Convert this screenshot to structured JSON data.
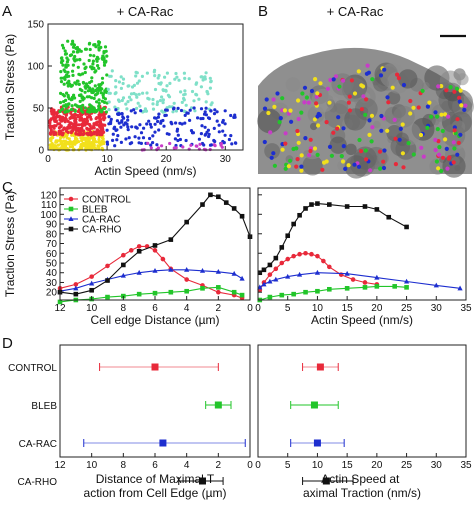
{
  "panels": {
    "A": {
      "letter": "A",
      "title": "+ CA-Rac"
    },
    "B": {
      "letter": "B",
      "title": "+ CA-Rac"
    },
    "C": {
      "letter": "C"
    },
    "D": {
      "letter": "D"
    }
  },
  "series_colors": {
    "CONTROL": "#e8293a",
    "BLEB": "#22c52a",
    "CA-RAC": "#1d2ecf",
    "CA-RHO": "#111111"
  },
  "chart_data": [
    {
      "id": "A",
      "type": "scatter",
      "title": "+ CA-Rac",
      "xlabel": "Actin Speed (nm/s)",
      "ylabel": "Traction Stress (Pa)",
      "xlim": [
        0,
        33
      ],
      "ylim": [
        0,
        150
      ],
      "xticks": [
        0,
        10,
        20,
        30
      ],
      "yticks": [
        0,
        50,
        100,
        150
      ],
      "clusters": [
        {
          "color": "#f2e01c",
          "x": [
            0.3,
            9.5
          ],
          "y": [
            0,
            22
          ],
          "n": 240
        },
        {
          "color": "#e8293a",
          "x": [
            0.3,
            9.8
          ],
          "y": [
            18,
            52
          ],
          "n": 320
        },
        {
          "color": "#22c52a",
          "x": [
            2,
            10
          ],
          "y": [
            45,
            130
          ],
          "n": 260
        },
        {
          "color": "#7fe0c8",
          "x": [
            10,
            28
          ],
          "y": [
            45,
            95
          ],
          "n": 140
        },
        {
          "color": "#1d2ecf",
          "x": [
            10,
            32
          ],
          "y": [
            5,
            50
          ],
          "n": 170
        },
        {
          "color": "#c83cc8",
          "x": [
            15,
            30
          ],
          "y": [
            0,
            8
          ],
          "n": 25
        }
      ]
    },
    {
      "id": "C-left",
      "type": "line",
      "xlabel": "Cell edge Distance (µm)",
      "ylabel": "Traction Stress (Pa)",
      "xlim": [
        12,
        0
      ],
      "ylim": [
        12,
        127
      ],
      "xticks": [
        12,
        10,
        8,
        6,
        4,
        2,
        0
      ],
      "yticks": [
        20,
        30,
        40,
        50,
        60,
        70,
        80,
        90,
        100,
        110,
        120
      ],
      "legend": [
        "CONTROL",
        "BLEB",
        "CA-RAC",
        "CA-RHO"
      ],
      "legend_position": "top-left",
      "series": [
        {
          "name": "CONTROL",
          "color": "#e8293a",
          "marker": "o",
          "x": [
            12,
            11,
            10,
            9,
            8,
            7.5,
            7,
            6.5,
            6,
            5.5,
            5,
            4,
            3,
            2,
            1,
            0.5
          ],
          "y": [
            24,
            28,
            36,
            47,
            58,
            63,
            67,
            67,
            63,
            54,
            44,
            33,
            27,
            20,
            17,
            14
          ]
        },
        {
          "name": "BLEB",
          "color": "#22c52a",
          "marker": "s",
          "x": [
            12,
            11,
            10,
            9,
            8,
            7,
            6,
            5,
            4,
            3,
            2,
            1,
            0.5
          ],
          "y": [
            10,
            12,
            13,
            15,
            16,
            18,
            19,
            20,
            21,
            24,
            25,
            20,
            17
          ]
        },
        {
          "name": "CA-RAC",
          "color": "#1d2ecf",
          "marker": "^",
          "x": [
            12,
            11,
            10,
            9,
            8,
            7,
            6,
            5,
            4,
            3,
            2,
            1,
            0.5
          ],
          "y": [
            21,
            24,
            29,
            33,
            37,
            40,
            42,
            43,
            43,
            42,
            41,
            39,
            34
          ]
        },
        {
          "name": "CA-RHO",
          "color": "#111111",
          "marker": "s",
          "x": [
            12,
            11,
            10,
            9,
            8,
            7,
            6,
            5,
            4,
            3,
            2.5,
            2,
            1.5,
            1,
            0.5,
            0
          ],
          "y": [
            20,
            18,
            22,
            32,
            48,
            62,
            68,
            74,
            92,
            110,
            120,
            118,
            112,
            106,
            98,
            77
          ]
        }
      ]
    },
    {
      "id": "C-right",
      "type": "line",
      "xlabel": "Actin Speed (nm/s)",
      "xlim": [
        0,
        35
      ],
      "ylim": [
        12,
        127
      ],
      "xticks": [
        0,
        5,
        10,
        15,
        20,
        25,
        30,
        35
      ],
      "series": [
        {
          "name": "CONTROL",
          "color": "#e8293a",
          "marker": "o",
          "x": [
            0.3,
            1,
            2,
            3,
            4,
            5,
            6,
            7,
            8,
            9,
            10,
            11,
            12,
            14,
            16,
            18,
            20
          ],
          "y": [
            22,
            30,
            38,
            44,
            50,
            54,
            57,
            59,
            60,
            59,
            57,
            52,
            46,
            38,
            33,
            30,
            28
          ]
        },
        {
          "name": "BLEB",
          "color": "#22c52a",
          "marker": "s",
          "x": [
            0.3,
            2,
            4,
            6,
            8,
            10,
            12,
            15,
            18,
            20,
            23,
            25
          ],
          "y": [
            12,
            15,
            17,
            18,
            20,
            21,
            23,
            24,
            25,
            26,
            26,
            25
          ]
        },
        {
          "name": "CA-RAC",
          "color": "#1d2ecf",
          "marker": "^",
          "x": [
            0.3,
            1,
            2,
            3,
            5,
            7,
            10,
            15,
            20,
            25,
            30,
            34
          ],
          "y": [
            25,
            28,
            31,
            33,
            36,
            38,
            40,
            39,
            35,
            31,
            27,
            24
          ]
        },
        {
          "name": "CA-RHO",
          "color": "#111111",
          "marker": "s",
          "x": [
            0.3,
            1,
            2,
            3,
            4,
            5,
            6,
            7,
            8,
            9,
            10,
            12,
            15,
            18,
            20,
            22,
            25
          ],
          "y": [
            40,
            43,
            48,
            55,
            66,
            78,
            90,
            99,
            106,
            110,
            111,
            110,
            108,
            108,
            105,
            97,
            87
          ]
        }
      ]
    },
    {
      "id": "D-left",
      "type": "scatter",
      "xlabel": "Distance of Maximal Traction from Cell Edge (µm)",
      "xlim": [
        12,
        0
      ],
      "xticks": [
        12,
        10,
        8,
        6,
        4,
        2,
        0
      ],
      "categories": [
        "CONTROL",
        "BLEB",
        "CA-RAC",
        "CA-RHO"
      ],
      "values": [
        6.0,
        2.0,
        5.5,
        3.0
      ],
      "errors": [
        [
          9.5,
          2.0
        ],
        [
          2.8,
          1.2
        ],
        [
          10.5,
          0.3
        ],
        [
          4.5,
          1.7
        ]
      ]
    },
    {
      "id": "D-right",
      "type": "scatter",
      "xlabel": "Actin Speed at Maximal Traction (nm/s)",
      "xlim": [
        0,
        35
      ],
      "xticks": [
        0,
        5,
        10,
        15,
        20,
        25,
        30,
        35
      ],
      "categories": [
        "CONTROL",
        "BLEB",
        "CA-RAC",
        "CA-RHO"
      ],
      "values": [
        10.5,
        9.5,
        10.0,
        11.5
      ],
      "errors": [
        [
          7.5,
          13.5
        ],
        [
          5.5,
          13.5
        ],
        [
          5.5,
          14.5
        ],
        [
          7.5,
          16.0
        ]
      ]
    }
  ],
  "micrograph": {
    "scale_bar": true,
    "point_colors": [
      "#e8293a",
      "#22c52a",
      "#f2e01c",
      "#1d2ecf",
      "#c83cc8"
    ]
  }
}
